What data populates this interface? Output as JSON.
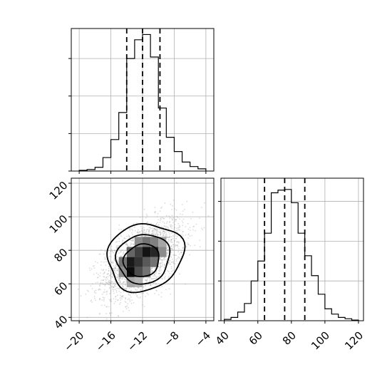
{
  "chart_data": [
    {
      "type": "histogram",
      "panel": "top-left",
      "variable": "x",
      "xlim": [
        -21,
        -3
      ],
      "grid": true,
      "bin_edges": [
        -20,
        -19,
        -18,
        -17,
        -16,
        -15,
        -14,
        -13,
        -12,
        -11,
        -10,
        -9,
        -8,
        -7,
        -6,
        -5,
        -4
      ],
      "counts": [
        1,
        2,
        5,
        18,
        42,
        78,
        150,
        175,
        182,
        152,
        84,
        45,
        26,
        12,
        6,
        3
      ],
      "ylim": [
        0,
        190
      ],
      "y_ticks": [
        0,
        50,
        100,
        150
      ],
      "quantile_lines": [
        -14,
        -12,
        -9.8
      ]
    },
    {
      "type": "histogram2d",
      "panel": "bottom-left",
      "xlim": [
        -21,
        -3
      ],
      "ylim": [
        38,
        123
      ],
      "grid": true,
      "x_ticks": [
        -20,
        -16,
        -12,
        -8,
        -4
      ],
      "x_tick_labels": [
        "−20",
        "−16",
        "−12",
        "−8",
        "−4"
      ],
      "y_ticks": [
        40,
        60,
        80,
        100,
        120
      ],
      "y_tick_labels": [
        "40",
        "60",
        "80",
        "100",
        "120"
      ],
      "scatter": {
        "center": [
          -12,
          75
        ],
        "std": [
          2.6,
          12
        ],
        "correlation": 0.55,
        "count": 2200,
        "color": "#9a9a9a"
      },
      "density_cells": [
        {
          "x": [
            -14,
            -13
          ],
          "y": [
            64,
            70
          ],
          "shade": 0.95
        },
        {
          "x": [
            -13,
            -12
          ],
          "y": [
            64,
            70
          ],
          "shade": 0.7
        },
        {
          "x": [
            -14,
            -13
          ],
          "y": [
            70,
            76
          ],
          "shade": 0.9
        },
        {
          "x": [
            -13,
            -12
          ],
          "y": [
            70,
            76
          ],
          "shade": 0.8
        },
        {
          "x": [
            -12,
            -11
          ],
          "y": [
            70,
            76
          ],
          "shade": 0.65
        },
        {
          "x": [
            -15,
            -14
          ],
          "y": [
            70,
            76
          ],
          "shade": 0.55
        },
        {
          "x": [
            -13,
            -12
          ],
          "y": [
            76,
            82
          ],
          "shade": 0.75
        },
        {
          "x": [
            -12,
            -11
          ],
          "y": [
            76,
            82
          ],
          "shade": 0.92
        },
        {
          "x": [
            -11,
            -10
          ],
          "y": [
            76,
            82
          ],
          "shade": 0.85
        },
        {
          "x": [
            -14,
            -13
          ],
          "y": [
            76,
            82
          ],
          "shade": 0.6
        },
        {
          "x": [
            -12,
            -11
          ],
          "y": [
            82,
            88
          ],
          "shade": 0.55
        },
        {
          "x": [
            -11,
            -10
          ],
          "y": [
            82,
            88
          ],
          "shade": 0.5
        },
        {
          "x": [
            -10,
            -9
          ],
          "y": [
            76,
            82
          ],
          "shade": 0.45
        },
        {
          "x": [
            -13,
            -12
          ],
          "y": [
            82,
            88
          ],
          "shade": 0.45
        },
        {
          "x": [
            -12,
            -11
          ],
          "y": [
            64,
            70
          ],
          "shade": 0.55
        },
        {
          "x": [
            -15,
            -14
          ],
          "y": [
            64,
            70
          ],
          "shade": 0.45
        },
        {
          "x": [
            -14,
            -13
          ],
          "y": [
            58,
            64
          ],
          "shade": 0.35
        },
        {
          "x": [
            -13,
            -12
          ],
          "y": [
            58,
            64
          ],
          "shade": 0.3
        },
        {
          "x": [
            -10,
            -9
          ],
          "y": [
            82,
            88
          ],
          "shade": 0.35
        },
        {
          "x": [
            -11,
            -10
          ],
          "y": [
            70,
            76
          ],
          "shade": 0.55
        }
      ],
      "contour_levels": [
        {
          "center": [
            -12.1,
            74
          ],
          "rx": 2.3,
          "ry": 9.5,
          "angle": 0.5,
          "ripple": 0.04
        },
        {
          "center": [
            -11.9,
            75
          ],
          "rx": 3.4,
          "ry": 14.5,
          "angle": 0.48,
          "ripple": 0.05
        },
        {
          "center": [
            -11.7,
            76
          ],
          "rx": 4.9,
          "ry": 19.5,
          "angle": 0.45,
          "ripple": 0.06
        }
      ]
    },
    {
      "type": "histogram",
      "panel": "bottom-right",
      "variable": "y",
      "xlim": [
        38,
        123
      ],
      "grid": true,
      "x_ticks": [
        40,
        60,
        80,
        100,
        120
      ],
      "x_tick_labels": [
        "40",
        "60",
        "80",
        "100",
        "120"
      ],
      "bin_edges": [
        40,
        44,
        48,
        52,
        56,
        60,
        64,
        68,
        72,
        76,
        80,
        84,
        88,
        92,
        96,
        100,
        104,
        108,
        112,
        116,
        120
      ],
      "counts": [
        2,
        5,
        13,
        26,
        60,
        90,
        132,
        193,
        197,
        198,
        178,
        132,
        98,
        68,
        40,
        18,
        10,
        5,
        3,
        1
      ],
      "ylim": [
        0,
        215
      ],
      "y_ticks": [
        0,
        60,
        120,
        180
      ],
      "quantile_lines": [
        64,
        76,
        88
      ]
    }
  ]
}
